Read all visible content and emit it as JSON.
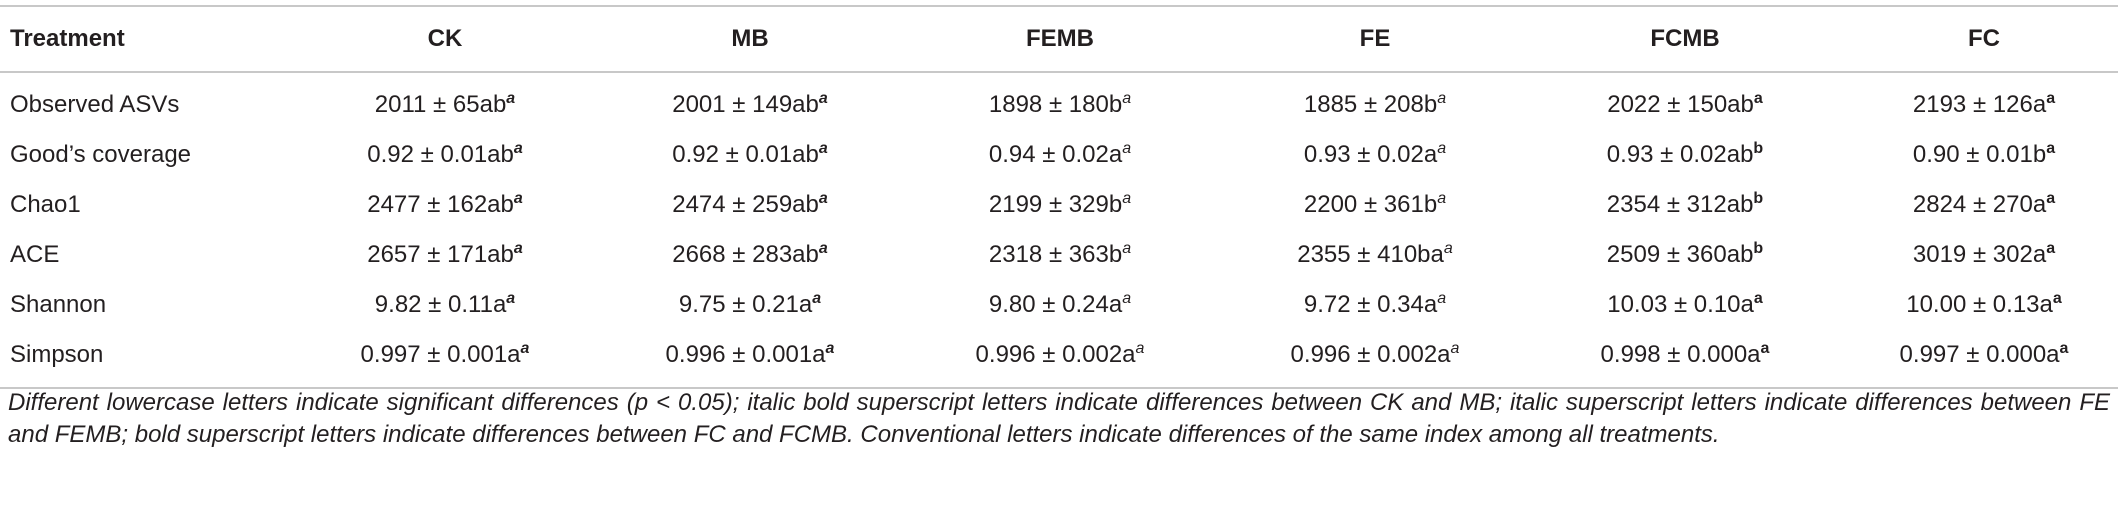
{
  "table": {
    "header": [
      "Treatment",
      "CK",
      "MB",
      "FEMB",
      "FE",
      "FCMB",
      "FC"
    ],
    "sup_styles": [
      null,
      "bold-italic",
      "bold-italic",
      "italic",
      "italic",
      "bold",
      "bold"
    ],
    "rows": [
      [
        "Observed ASVs",
        {
          "text": "2011 ± 65ab",
          "sup": "a"
        },
        {
          "text": "2001 ± 149ab",
          "sup": "a"
        },
        {
          "text": "1898 ± 180b",
          "sup": "a"
        },
        {
          "text": "1885 ± 208b",
          "sup": "a"
        },
        {
          "text": "2022 ± 150ab",
          "sup": "a"
        },
        {
          "text": "2193 ± 126a",
          "sup": "a"
        }
      ],
      [
        "Good’s coverage",
        {
          "text": "0.92 ± 0.01ab",
          "sup": "a"
        },
        {
          "text": "0.92 ± 0.01ab",
          "sup": "a"
        },
        {
          "text": "0.94 ± 0.02a",
          "sup": "a"
        },
        {
          "text": "0.93 ± 0.02a",
          "sup": "a"
        },
        {
          "text": "0.93 ± 0.02ab",
          "sup": "b"
        },
        {
          "text": "0.90 ± 0.01b",
          "sup": "a"
        }
      ],
      [
        "Chao1",
        {
          "text": "2477 ± 162ab",
          "sup": "a"
        },
        {
          "text": "2474 ± 259ab",
          "sup": "a"
        },
        {
          "text": "2199 ± 329b",
          "sup": "a"
        },
        {
          "text": "2200 ± 361b",
          "sup": "a"
        },
        {
          "text": "2354 ± 312ab",
          "sup": "b"
        },
        {
          "text": "2824 ± 270a",
          "sup": "a"
        }
      ],
      [
        "ACE",
        {
          "text": "2657 ± 171ab",
          "sup": "a"
        },
        {
          "text": "2668 ± 283ab",
          "sup": "a"
        },
        {
          "text": "2318 ± 363b",
          "sup": "a"
        },
        {
          "text": "2355 ± 410ba",
          "sup": "a"
        },
        {
          "text": "2509 ± 360ab",
          "sup": "b"
        },
        {
          "text": "3019 ± 302a",
          "sup": "a"
        }
      ],
      [
        "Shannon",
        {
          "text": "9.82 ± 0.11a",
          "sup": "a"
        },
        {
          "text": "9.75 ± 0.21a",
          "sup": "a"
        },
        {
          "text": "9.80 ± 0.24a",
          "sup": "a"
        },
        {
          "text": "9.72 ± 0.34a",
          "sup": "a"
        },
        {
          "text": "10.03 ± 0.10a",
          "sup": "a"
        },
        {
          "text": "10.00 ± 0.13a",
          "sup": "a"
        }
      ],
      [
        "Simpson",
        {
          "text": "0.997 ± 0.001a",
          "sup": "a"
        },
        {
          "text": "0.996 ± 0.001a",
          "sup": "a"
        },
        {
          "text": "0.996 ± 0.002a",
          "sup": "a"
        },
        {
          "text": "0.996 ± 0.002a",
          "sup": "a"
        },
        {
          "text": "0.998 ± 0.000a",
          "sup": "a"
        },
        {
          "text": "0.997 ± 0.000a",
          "sup": "a"
        }
      ]
    ]
  },
  "footnote": "Different lowercase letters indicate significant differences (p < 0.05); italic bold superscript letters indicate differences between CK and MB; italic superscript letters indicate differences between FE and FEMB; bold superscript letters indicate differences between FC and FCMB. Conventional letters indicate differences of the same index among all treatments."
}
